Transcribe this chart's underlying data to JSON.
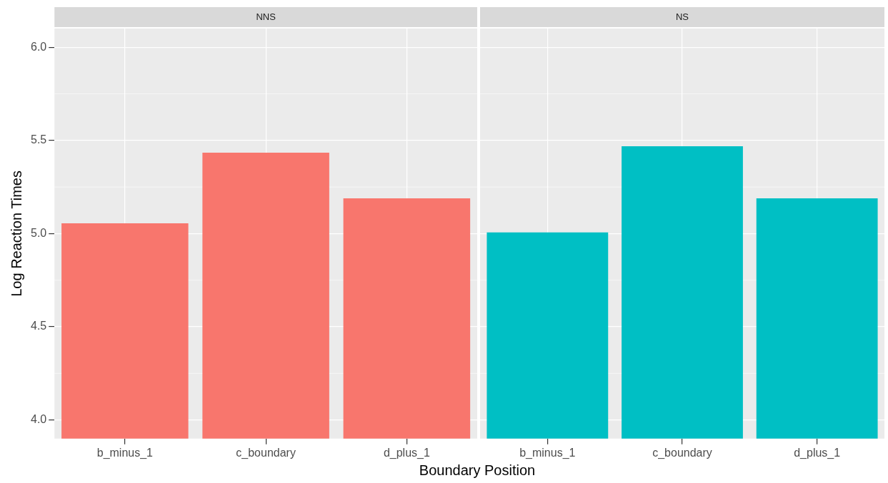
{
  "chart_data": [
    {
      "type": "bar",
      "title": "NNS",
      "ylabel": "Log Reaction Times",
      "xlabel": "Boundary Position",
      "categories": [
        "b_minus_1",
        "c_boundary",
        "d_plus_1"
      ],
      "values": [
        5.055,
        5.434,
        5.189
      ],
      "color": "#f8766d",
      "ylim": [
        3.9,
        6.1
      ],
      "yticks": [
        {
          "value": 4,
          "label": "4.0"
        },
        4.5,
        {
          "value": 5,
          "label": "5.0"
        },
        5.5,
        {
          "value": 6,
          "label": "6.0"
        }
      ],
      "grid": true
    },
    {
      "type": "bar",
      "title": "NS",
      "categories": [
        "b_minus_1",
        "c_boundary",
        "d_plus_1"
      ],
      "values": [
        5.006,
        5.468,
        5.189
      ],
      "color": "#00bfc4",
      "ylim": [
        3.9,
        6.1
      ],
      "yticks": [
        4,
        4.5,
        5,
        5.5,
        6
      ],
      "grid": true,
      "tick_labels": "x"
    }
  ]
}
